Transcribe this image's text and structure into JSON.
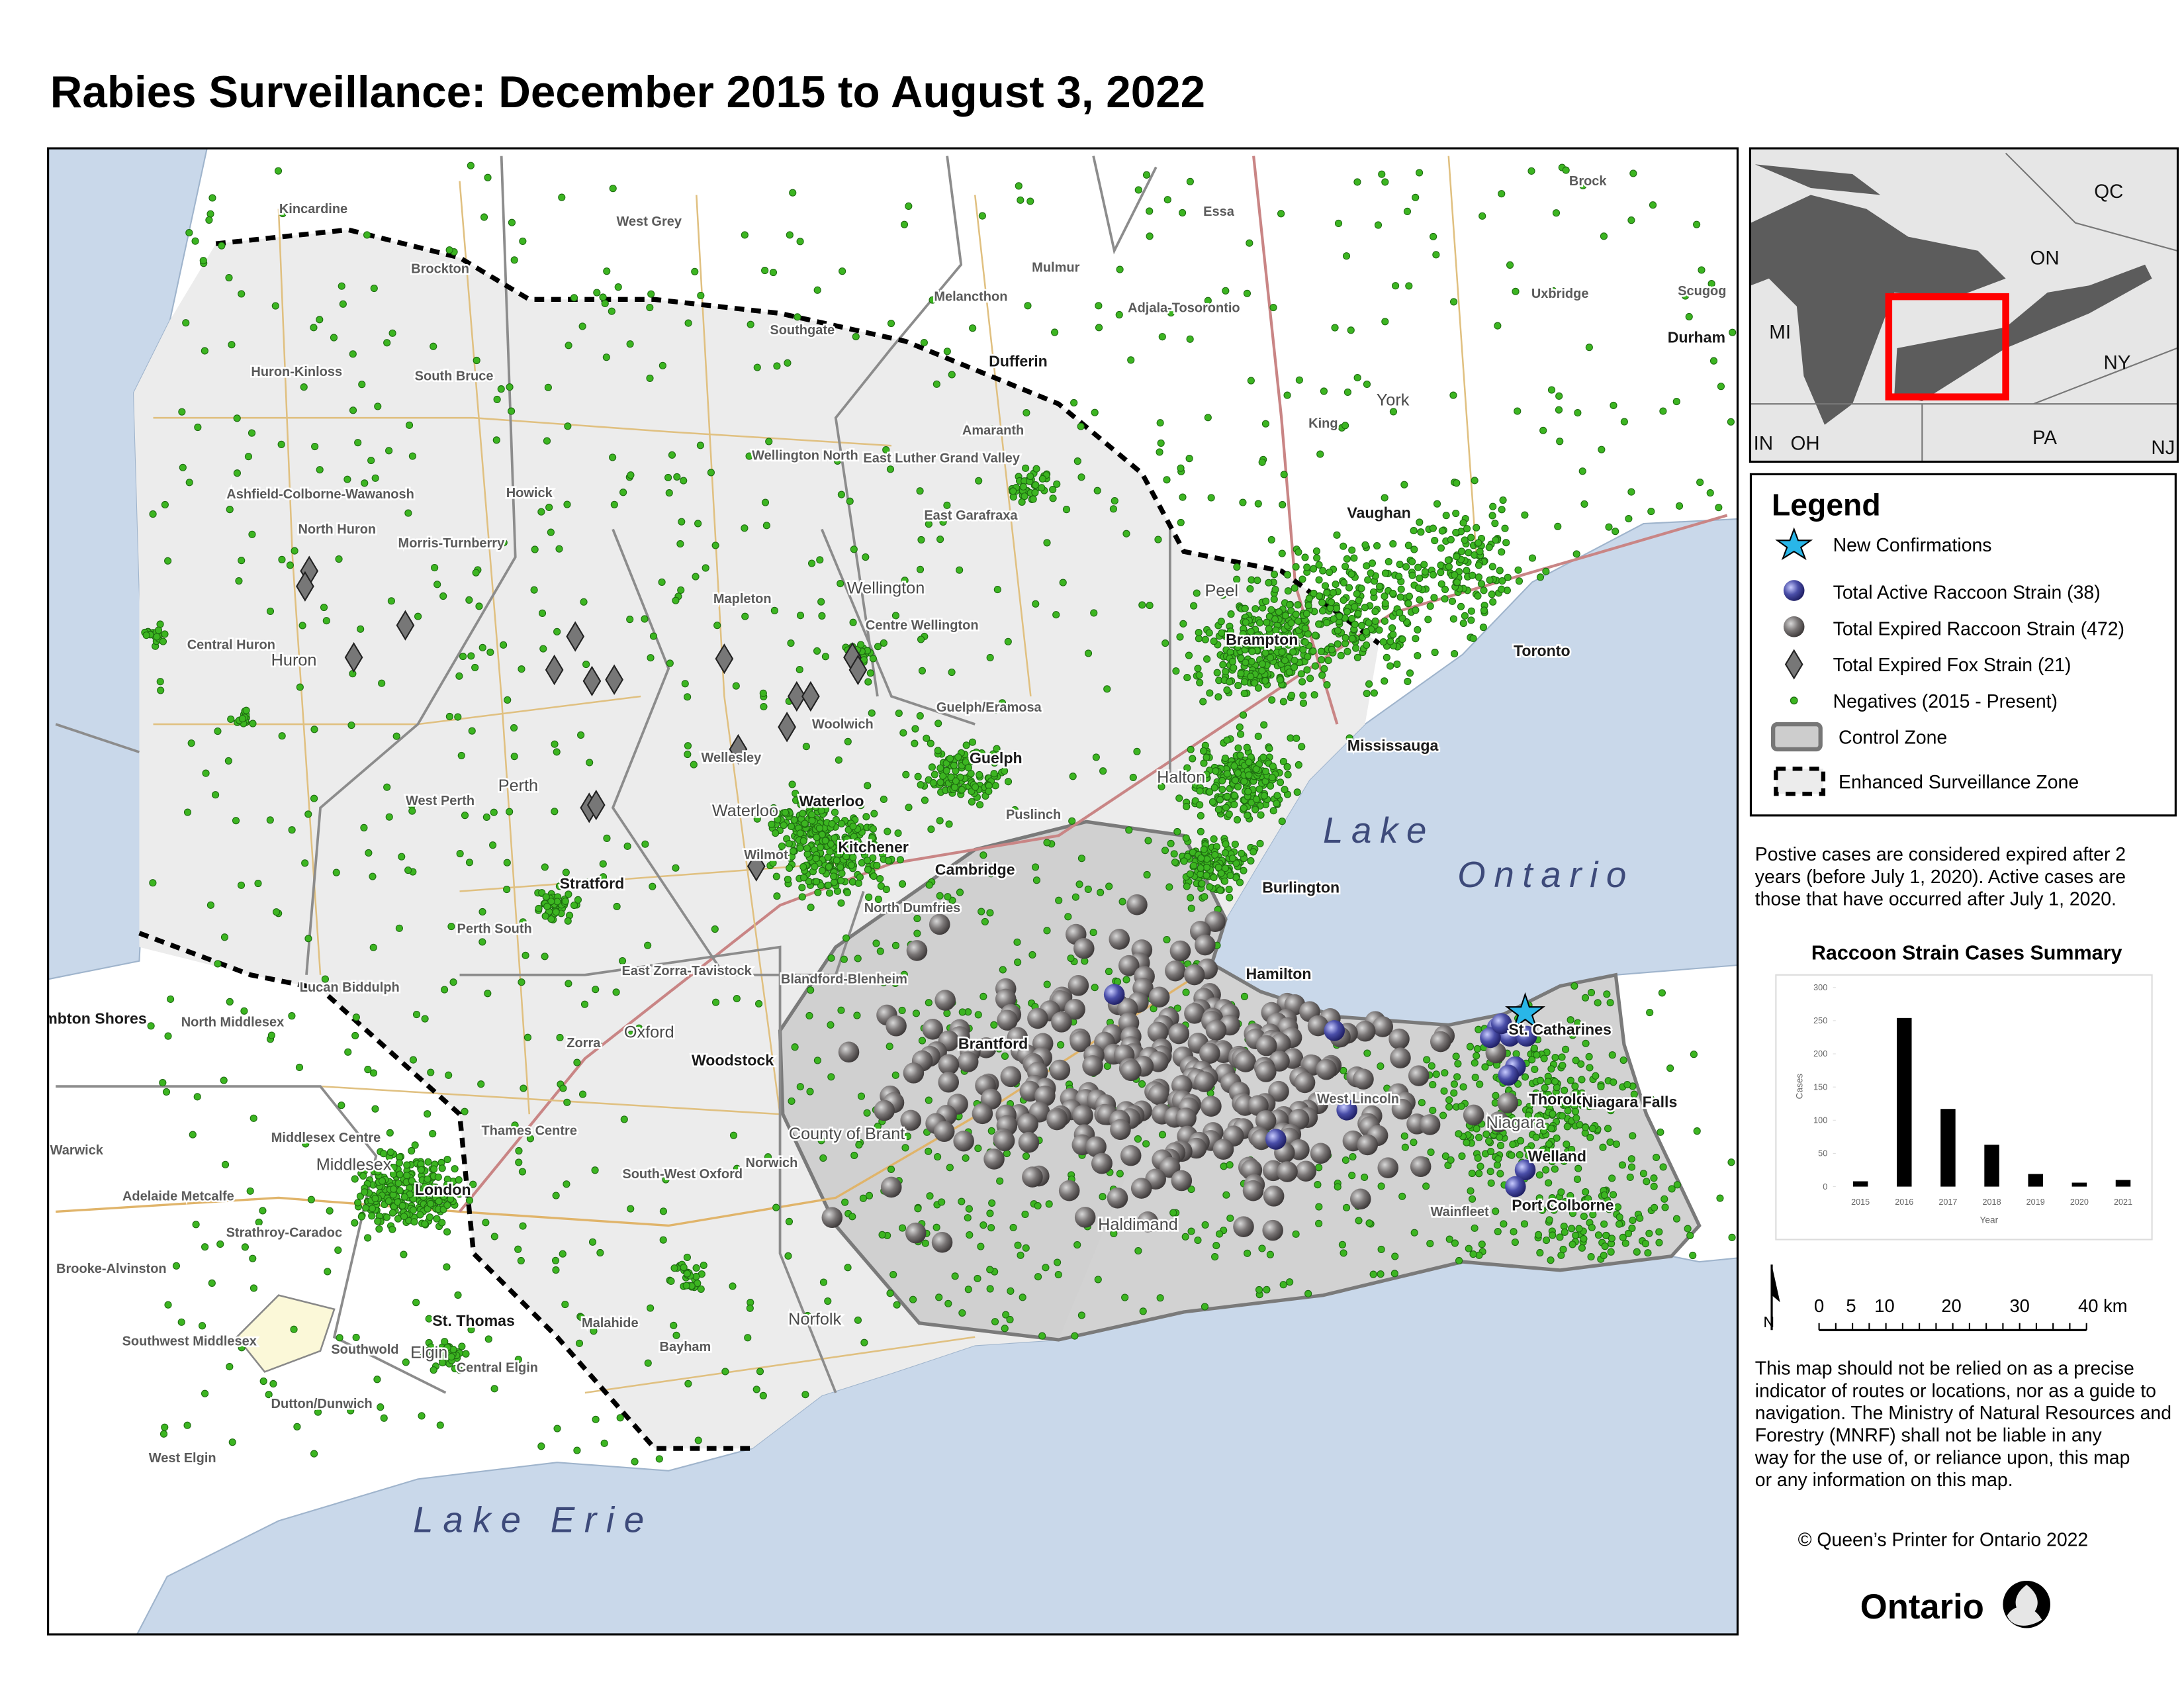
{
  "header": {
    "title": "Rabies Surveillance: December 2015 to August 3, 2022"
  },
  "map": {
    "labels": [
      "Kincardine",
      "West Grey",
      "Essa",
      "Brock",
      "Brockton",
      "Mulmur",
      "Melancthon",
      "Adjala-Tosorontio",
      "Uxbridge",
      "Scugog",
      "Southgate",
      "Durham",
      "Huron-Kinloss",
      "South Bruce",
      "Dufferin",
      "York",
      "Amaranth",
      "King",
      "Wellington North",
      "East Luther Grand Valley",
      "Ashfield-Colborne-Wawanosh",
      "Howick",
      "North Huron",
      "East Garafraxa",
      "Vaughan",
      "Morris-Turnberry",
      "Peel",
      "Wellington",
      "Mapleton",
      "Centre Wellington",
      "Brampton",
      "Toronto",
      "Central Huron",
      "Huron",
      "Guelph/Eramosa",
      "Woolwich",
      "Mississauga",
      "Wellesley",
      "Guelph",
      "Halton",
      "Perth",
      "West Perth",
      "Waterloo",
      "Waterloo",
      "Puslinch",
      "Kitchener",
      "Wilmot",
      "Cambridge",
      "Stratford",
      "Burlington",
      "North Dumfries",
      "Perth South",
      "Hamilton",
      "East Zorra-Tavistock",
      "Blandford-Blenheim",
      "Lucan Biddulph",
      "Lambton Shores",
      "St. Catharines",
      "North Middlesex",
      "Oxford",
      "Zorra",
      "Brantford",
      "Woodstock",
      "West Lincoln",
      "Thorold",
      "Niagara Falls",
      "Niagara",
      "County of Brant",
      "Thames Centre",
      "Middlesex Centre",
      "Warwick",
      "Middlesex",
      "Norwich",
      "Welland",
      "South-West Oxford",
      "London",
      "Adelaide Metcalfe",
      "Port Colborne",
      "Wainfleet",
      "Haldimand",
      "Strathroy-Caradoc",
      "Brooke-Alvinston",
      "St. Thomas",
      "Norfolk",
      "Malahide",
      "Southwest Middlesex",
      "Southwold",
      "Elgin",
      "Central Elgin",
      "Bayham",
      "Dutton/Dunwich",
      "West Elgin"
    ],
    "lakes": [
      "Lake Ontario",
      "Lake Erie"
    ]
  },
  "inset": {
    "labels": [
      "QC",
      "ON",
      "MI",
      "NY",
      "IN",
      "OH",
      "PA",
      "NJ"
    ]
  },
  "legend": {
    "title": "Legend",
    "items": [
      "New Confirmations",
      "Total Active Raccoon Strain (38)",
      "Total Expired Raccoon Strain (472)",
      "Total Expired Fox Strain (21)",
      "Negatives (2015 - Present)",
      "Control Zone",
      "Enhanced Surveillance Zone"
    ]
  },
  "notes": {
    "expiry_lines": [
      "Postive cases are considered expired after 2",
      "years (before July 1, 2020). Active cases are",
      "those that have occurred after July 1, 2020."
    ],
    "disclaimer_lines": [
      "This map should not be relied on as a precise",
      "indicator of routes or locations, nor as a guide to",
      "navigation. The Ministry of Natural Resources and",
      "Forestry (MNRF) shall not be liable in any",
      "way for the use of, or reliance upon, this map",
      "or any information on this map."
    ],
    "copyright": "© Queen’s Printer for Ontario 2022",
    "logo": "Ontario"
  },
  "scale_bar": {
    "labels": [
      "0",
      "5",
      "10",
      "20",
      "30",
      "40 km"
    ],
    "north": "N"
  },
  "chart_data": {
    "type": "bar",
    "title": "Raccoon Strain Cases Summary",
    "x_label": "Year",
    "y_label": "Cases",
    "categories": [
      "2015",
      "2016",
      "2017",
      "2018",
      "2019",
      "2020",
      "2021"
    ],
    "values": [
      8,
      254,
      117,
      63,
      19,
      6,
      10
    ],
    "color": "#000000",
    "ylim": [
      0,
      300
    ],
    "yticks": [
      0,
      50,
      100,
      150,
      200,
      250,
      300
    ]
  }
}
